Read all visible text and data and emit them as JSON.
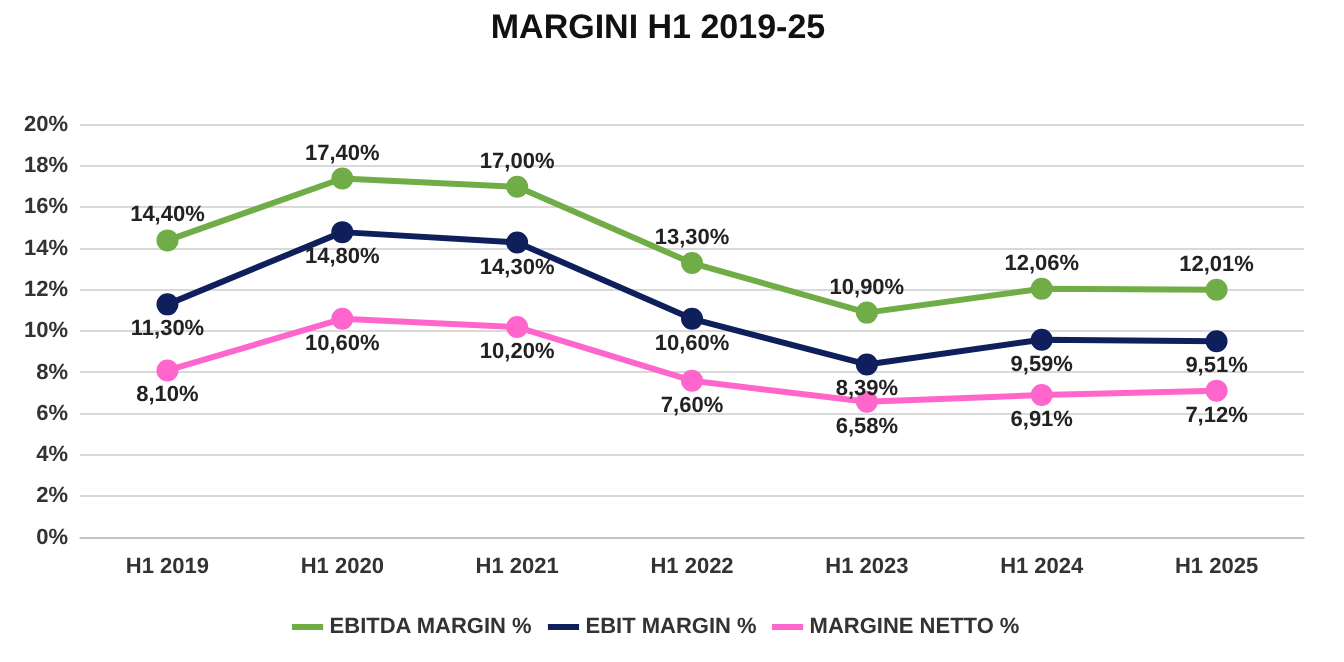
{
  "chart_data": {
    "type": "line",
    "title": "MARGINI H1 2019-25",
    "categories": [
      "H1 2019",
      "H1 2020",
      "H1 2021",
      "H1 2022",
      "H1 2023",
      "H1 2024",
      "H1 2025"
    ],
    "series": [
      {
        "name": "EBITDA MARGIN %",
        "color": "#70ad47",
        "values": [
          14.4,
          17.4,
          17.0,
          13.3,
          10.9,
          12.06,
          12.01
        ],
        "value_labels": [
          "14,40%",
          "17,40%",
          "17,00%",
          "13,30%",
          "10,90%",
          "12,06%",
          "12,01%"
        ]
      },
      {
        "name": "EBIT MARGIN %",
        "color": "#0e1f5b",
        "values": [
          11.3,
          14.8,
          14.3,
          10.6,
          8.39,
          9.59,
          9.51
        ],
        "value_labels": [
          "11,30%",
          "14,80%",
          "14,30%",
          "10,60%",
          "8,39%",
          "9,59%",
          "9,51%"
        ]
      },
      {
        "name": "MARGINE NETTO %",
        "color": "#ff66cc",
        "values": [
          8.1,
          10.6,
          10.2,
          7.6,
          6.58,
          6.91,
          7.12
        ],
        "value_labels": [
          "8,10%",
          "10,60%",
          "10,20%",
          "7,60%",
          "6,58%",
          "6,91%",
          "7,12%"
        ]
      }
    ],
    "ylim": [
      0,
      20
    ],
    "yticks": [
      {
        "value": 0,
        "label": "0%"
      },
      {
        "value": 2,
        "label": "2%"
      },
      {
        "value": 4,
        "label": "4%"
      },
      {
        "value": 6,
        "label": "6%"
      },
      {
        "value": 8,
        "label": "8%"
      },
      {
        "value": 10,
        "label": "10%"
      },
      {
        "value": 12,
        "label": "12%"
      },
      {
        "value": 14,
        "label": "14%"
      },
      {
        "value": 16,
        "label": "16%"
      },
      {
        "value": 18,
        "label": "18%"
      },
      {
        "value": 20,
        "label": "20%"
      }
    ],
    "grid": "y",
    "legend": "bottom",
    "marker": "circle",
    "line_style": "solid"
  }
}
